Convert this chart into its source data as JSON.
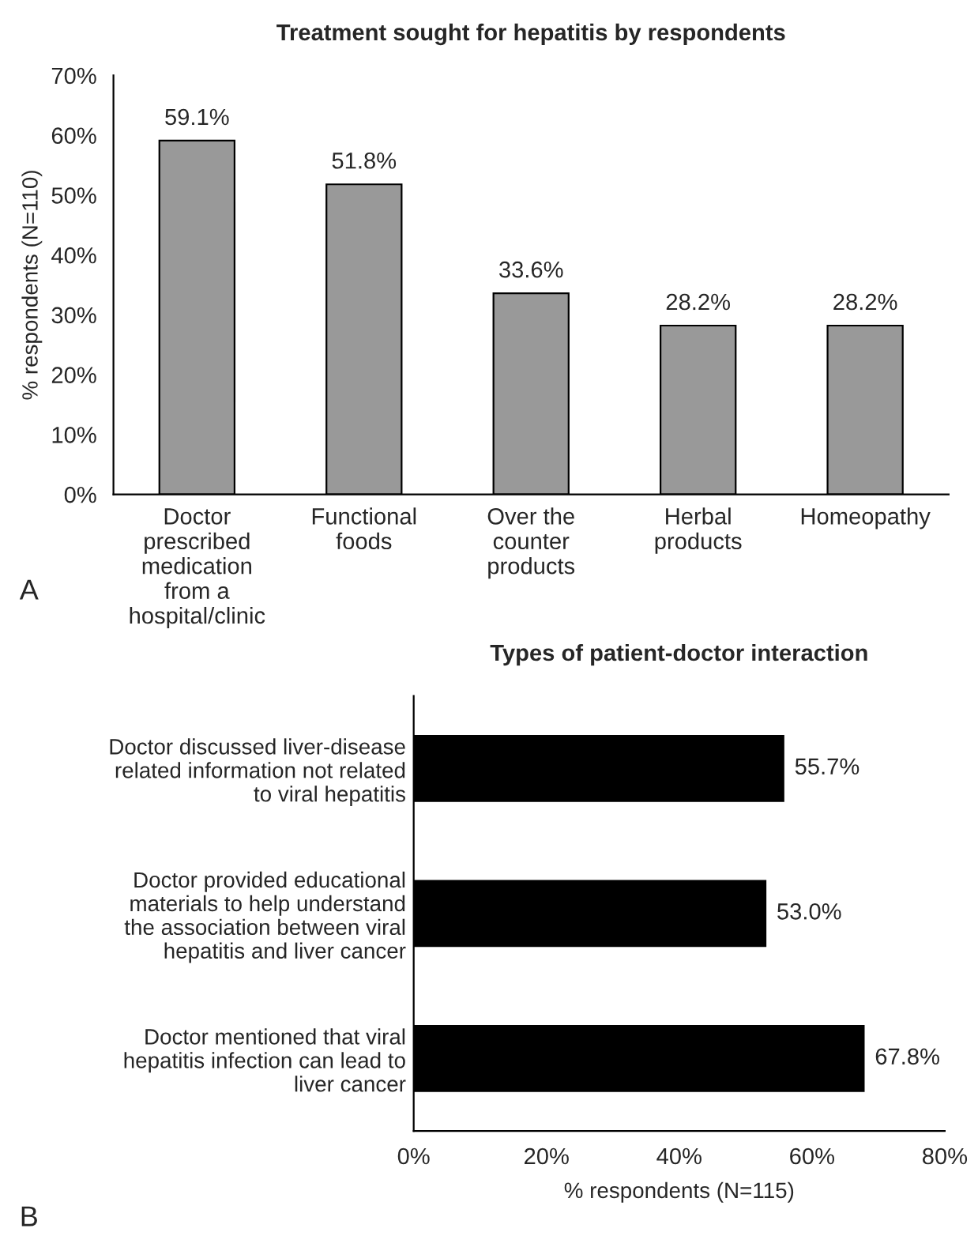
{
  "chart_data": [
    {
      "type": "bar",
      "title": "Treatment sought for hepatitis by respondents",
      "ylabel": "% respondents (N=110)",
      "categories": [
        "Doctor\nprescribed\nmedication\nfrom a\nhospital/clinic",
        "Functional\nfoods",
        "Over the\ncounter\nproducts",
        "Herbal\nproducts",
        "Homeopathy"
      ],
      "values": [
        59.1,
        51.8,
        33.6,
        28.2,
        28.2
      ],
      "color": "#999999",
      "value_labels": [
        "59.1%",
        "51.8%",
        "33.6%",
        "28.2%",
        "28.2%"
      ],
      "ylim": [
        0,
        70
      ],
      "yticks": [
        {
          "value": 0,
          "label": "0%"
        },
        {
          "value": 10,
          "label": "10%"
        },
        {
          "value": 20,
          "label": "20%"
        },
        {
          "value": 30,
          "label": "30%"
        },
        {
          "value": 40,
          "label": "40%"
        },
        {
          "value": 50,
          "label": "50%"
        },
        {
          "value": 60,
          "label": "60%"
        },
        {
          "value": 70,
          "label": "70%"
        }
      ],
      "grid": false,
      "legend": false,
      "annotations": [
        "A"
      ]
    },
    {
      "type": "bar",
      "orientation": "horizontal",
      "title": "Types of patient-doctor interaction",
      "xlabel": "% respondents (N=115)",
      "categories": [
        "Doctor discussed liver-disease\nrelated information not related\nto viral hepatitis",
        "Doctor provided educational\nmaterials to help understand\nthe association between viral\nhepatitis and liver cancer",
        "Doctor mentioned that viral\nhepatitis infection can lead to\nliver cancer"
      ],
      "values": [
        55.7,
        53.0,
        67.8
      ],
      "color": "#000000",
      "value_labels": [
        "55.7%",
        "53.0%",
        "67.8%"
      ],
      "xlim": [
        0,
        80
      ],
      "xticks": [
        {
          "value": 0,
          "label": "0%"
        },
        {
          "value": 20,
          "label": "20%"
        },
        {
          "value": 40,
          "label": "40%"
        },
        {
          "value": 60,
          "label": "60%"
        },
        {
          "value": 80,
          "label": "80%"
        }
      ],
      "grid": false,
      "legend": false,
      "annotations": [
        "B"
      ]
    }
  ]
}
